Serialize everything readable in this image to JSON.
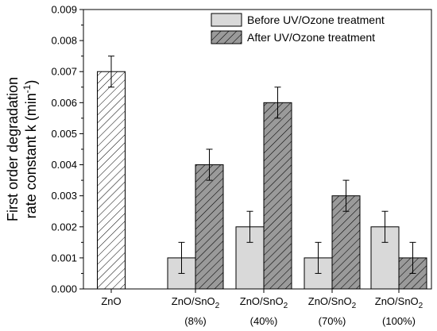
{
  "chart_data": {
    "type": "bar",
    "ylabel_main": "First order degradation",
    "ylabel_sub_prefix": "rate constant k (min",
    "ylabel_sup": "-1",
    "ylabel_suffix": ")",
    "xlabel": "",
    "ylim": [
      0,
      0.009
    ],
    "yticks": [
      "0.000",
      "0.001",
      "0.002",
      "0.003",
      "0.004",
      "0.005",
      "0.006",
      "0.007",
      "0.008",
      "0.009"
    ],
    "categories": [
      {
        "line1": "ZnO",
        "sub": "",
        "line1_suffix": "",
        "line2": ""
      },
      {
        "line1": "ZnO/SnO",
        "sub": "2",
        "line1_suffix": "",
        "line2": "(8%)"
      },
      {
        "line1": "ZnO/SnO",
        "sub": "2",
        "line1_suffix": "",
        "line2": "(40%)"
      },
      {
        "line1": "ZnO/SnO",
        "sub": "2",
        "line1_suffix": "",
        "line2": "(70%)"
      },
      {
        "line1": "ZnO/SnO",
        "sub": "2",
        "line1_suffix": "",
        "line2": "(100%)"
      }
    ],
    "reference": {
      "category": "ZnO",
      "value": 0.007,
      "error": 0.0005
    },
    "series": [
      {
        "name": "Before UV/Ozone treatment",
        "fill": "#d9d9d9",
        "pattern": "solid",
        "values": [
          null,
          0.001,
          0.002,
          0.001,
          0.002
        ],
        "errors": [
          null,
          0.0005,
          0.0005,
          0.0005,
          0.0005
        ]
      },
      {
        "name": "After UV/Ozone treatment",
        "fill": "#9a9a9a",
        "pattern": "hatch",
        "values": [
          null,
          0.004,
          0.006,
          0.003,
          0.001
        ],
        "errors": [
          null,
          0.0005,
          0.0005,
          0.0005,
          0.0005
        ]
      }
    ],
    "legend_position": "top-right",
    "grid": false
  }
}
